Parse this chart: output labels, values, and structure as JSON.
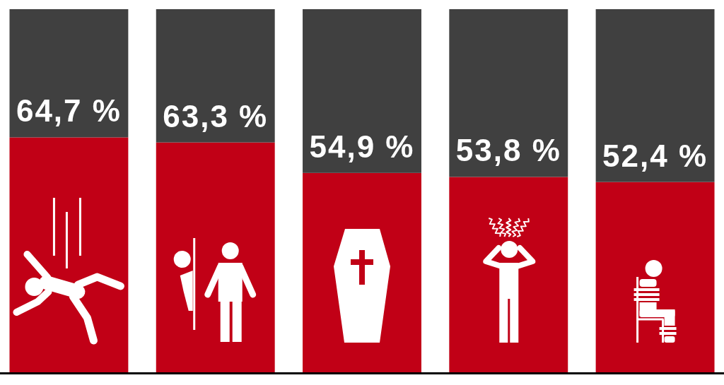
{
  "chart_data": {
    "type": "bar",
    "stacked": true,
    "categories": [
      null,
      null,
      null,
      null,
      null
    ],
    "ylim": [
      0,
      100
    ],
    "series": [
      {
        "color": "#c10016",
        "values": [
          64.7,
          63.3,
          54.9,
          53.8,
          52.4
        ],
        "value_labels": [
          "64,7 %",
          "63,3 %",
          "54,9 %",
          "53,8 %",
          "52,4 %"
        ]
      },
      {
        "color": "#404040",
        "values": [
          35.3,
          36.7,
          45.1,
          46.2,
          47.6
        ]
      }
    ]
  }
}
